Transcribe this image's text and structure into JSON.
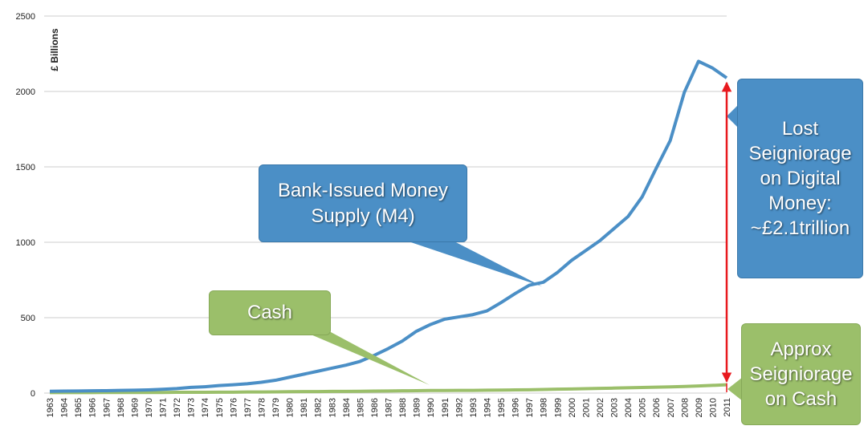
{
  "chart_data": {
    "type": "line",
    "y_label": "£ Billions",
    "categories": [
      "1963",
      "1964",
      "1965",
      "1966",
      "1967",
      "1968",
      "1969",
      "1970",
      "1971",
      "1972",
      "1973",
      "1974",
      "1975",
      "1976",
      "1977",
      "1978",
      "1979",
      "1980",
      "1981",
      "1982",
      "1983",
      "1984",
      "1985",
      "1986",
      "1987",
      "1988",
      "1989",
      "1990",
      "1991",
      "1992",
      "1993",
      "1994",
      "1995",
      "1996",
      "1997",
      "1998",
      "1999",
      "2000",
      "2001",
      "2002",
      "2003",
      "2004",
      "2005",
      "2006",
      "2007",
      "2008",
      "2009",
      "2010",
      "2011"
    ],
    "series": [
      {
        "name": "Bank-Issued Money Supply (M4)",
        "color": "#4b8fc6",
        "values": [
          12,
          13,
          14,
          15,
          16,
          18,
          19,
          21,
          25,
          30,
          38,
          42,
          50,
          55,
          62,
          72,
          85,
          105,
          125,
          145,
          165,
          185,
          210,
          250,
          295,
          345,
          410,
          455,
          490,
          505,
          520,
          545,
          600,
          660,
          715,
          735,
          800,
          880,
          945,
          1010,
          1090,
          1170,
          1300,
          1490,
          1675,
          1995,
          2200,
          2155,
          2090
        ]
      },
      {
        "name": "Cash",
        "color": "#9bbf6a",
        "values": [
          3,
          3,
          3,
          3,
          4,
          4,
          4,
          4,
          4,
          5,
          5,
          5,
          6,
          6,
          7,
          7,
          8,
          9,
          10,
          10,
          11,
          11,
          12,
          13,
          14,
          15,
          16,
          17,
          17,
          18,
          18,
          19,
          20,
          21,
          22,
          24,
          26,
          27,
          29,
          31,
          33,
          35,
          37,
          39,
          41,
          44,
          47,
          51,
          55
        ]
      }
    ],
    "annotations": [
      "Lost Seigniorage on Digital Money: ~£2.1trillion",
      "Approx Seigniorage on Cash"
    ],
    "ylim": [
      0,
      2500
    ],
    "yticks": [
      0,
      500,
      1000,
      1500,
      2000,
      2500
    ],
    "grid": true
  }
}
